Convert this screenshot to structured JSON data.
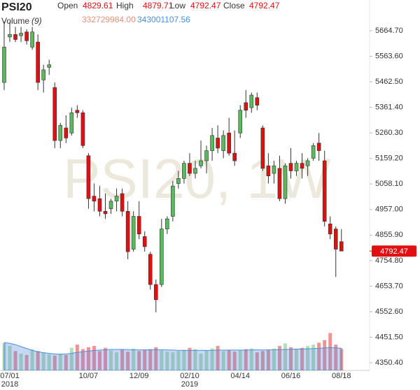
{
  "chart_data": {
    "type": "candlestick",
    "title": "PSI20",
    "watermark": "PSI20, 1W",
    "header": [
      {
        "label": "Open",
        "value": 4829.61
      },
      {
        "label": "High",
        "value": 4879.71
      },
      {
        "label": "Low",
        "value": 4792.47
      },
      {
        "label": "Close",
        "value": 4792.47
      }
    ],
    "volume_title": "Volume",
    "volume_period": "(9)",
    "volume_readout": {
      "volume": {
        "value": 332729984,
        "label": "332729984.00"
      },
      "ma": 343001107.56
    },
    "last_price": 4792.47,
    "up_color": "#5cb85c",
    "down_color": "#e01010",
    "categories": [
      null,
      "07/01",
      null,
      null,
      null,
      null,
      null,
      null,
      null,
      null,
      null,
      null,
      null,
      null,
      null,
      "10/07",
      null,
      null,
      null,
      null,
      null,
      null,
      null,
      null,
      "12/09",
      null,
      null,
      null,
      null,
      null,
      null,
      null,
      null,
      "02/10",
      null,
      null,
      null,
      null,
      null,
      null,
      null,
      null,
      "04/14",
      null,
      null,
      null,
      null,
      null,
      null,
      null,
      null,
      "06/16",
      null,
      null,
      null,
      null,
      null,
      null,
      null,
      null,
      "08/18"
    ],
    "years": [
      null,
      "2018",
      null,
      null,
      null,
      null,
      null,
      null,
      null,
      null,
      null,
      null,
      null,
      null,
      null,
      null,
      null,
      null,
      null,
      null,
      null,
      null,
      null,
      null,
      null,
      null,
      null,
      null,
      null,
      null,
      null,
      null,
      null,
      "2019",
      null,
      null,
      null,
      null,
      null,
      null,
      null,
      null,
      null,
      null,
      null,
      null,
      null,
      null,
      null,
      null,
      null,
      null,
      null,
      null,
      null,
      null,
      null,
      null,
      null,
      null,
      null
    ],
    "open": [
      5460,
      5640,
      5650,
      5645,
      5660,
      5600,
      5620,
      5470,
      5520,
      5440,
      5230,
      5280,
      5260,
      5350,
      5340,
      5170,
      5010,
      5000,
      4950,
      4960,
      4990,
      5020,
      4950,
      4800,
      4930,
      4850,
      4780,
      4660,
      4660,
      4880,
      4930,
      5060,
      5080,
      5140,
      5100,
      5130,
      5150,
      5190,
      5240,
      5190,
      5260,
      5180,
      5260,
      5380,
      5360,
      5400,
      5280,
      5130,
      5100,
      5120,
      5000,
      5140,
      5110,
      5140,
      5130,
      5160,
      5220,
      5150,
      4900,
      4880,
      4829.61
    ],
    "high": [
      5700,
      5700,
      5680,
      5680,
      5670,
      5680,
      5650,
      5530,
      5550,
      5460,
      5300,
      5330,
      5360,
      5370,
      5350,
      5180,
      5060,
      5050,
      5020,
      5000,
      5040,
      5040,
      4990,
      4950,
      4990,
      4870,
      4790,
      4680,
      4920,
      4930,
      5070,
      5110,
      5150,
      5180,
      5150,
      5230,
      5210,
      5280,
      5290,
      5270,
      5320,
      5270,
      5370,
      5430,
      5420,
      5420,
      5290,
      5180,
      5150,
      5170,
      5140,
      5200,
      5150,
      5180,
      5160,
      5220,
      5260,
      5190,
      4930,
      4890,
      4879.71
    ],
    "low": [
      5430,
      5620,
      5620,
      5620,
      5610,
      5590,
      5430,
      5420,
      5490,
      5200,
      5200,
      5220,
      5250,
      5320,
      5200,
      4960,
      4950,
      4930,
      4920,
      4940,
      4950,
      4930,
      4760,
      4790,
      4840,
      4790,
      4640,
      4550,
      4650,
      4860,
      4910,
      5040,
      5060,
      5090,
      5080,
      5120,
      5100,
      5150,
      5180,
      5160,
      5170,
      5130,
      5240,
      5320,
      5340,
      5350,
      5110,
      5060,
      5060,
      4990,
      4980,
      5080,
      5090,
      5080,
      5090,
      5150,
      5150,
      4890,
      4840,
      4690,
      4792.47
    ],
    "close": [
      5600,
      5650,
      5630,
      5655,
      5625,
      5660,
      5460,
      5510,
      5530,
      5230,
      5290,
      5240,
      5340,
      5340,
      5210,
      5000,
      4990,
      4950,
      4940,
      4990,
      5010,
      4950,
      4790,
      4930,
      4860,
      4810,
      4660,
      4600,
      4880,
      4920,
      5050,
      5080,
      5140,
      5100,
      5120,
      5150,
      5190,
      5250,
      5200,
      5250,
      5180,
      5150,
      5350,
      5350,
      5410,
      5370,
      5120,
      5090,
      5130,
      5000,
      5130,
      5110,
      5140,
      5120,
      5150,
      5210,
      5190,
      4910,
      4860,
      4800,
      4792.47
    ],
    "volume": [
      420000000,
      380000000,
      300000000,
      260000000,
      240000000,
      330000000,
      300000000,
      280000000,
      250000000,
      230000000,
      260000000,
      240000000,
      350000000,
      400000000,
      330000000,
      360000000,
      380000000,
      300000000,
      350000000,
      310000000,
      280000000,
      330000000,
      290000000,
      340000000,
      300000000,
      320000000,
      330000000,
      360000000,
      310000000,
      290000000,
      280000000,
      300000000,
      320000000,
      350000000,
      330000000,
      260000000,
      310000000,
      340000000,
      380000000,
      300000000,
      320000000,
      290000000,
      310000000,
      330000000,
      340000000,
      280000000,
      300000000,
      320000000,
      340000000,
      380000000,
      420000000,
      360000000,
      330000000,
      350000000,
      380000000,
      400000000,
      430000000,
      470000000,
      580000000,
      400000000,
      332729984
    ],
    "volume_ma": [
      430000000,
      420000000,
      400000000,
      370000000,
      340000000,
      310000000,
      290000000,
      275000000,
      265000000,
      255000000,
      250000000,
      255000000,
      265000000,
      280000000,
      290000000,
      300000000,
      310000000,
      315000000,
      320000000,
      325000000,
      325000000,
      325000000,
      322000000,
      320000000,
      318000000,
      318000000,
      320000000,
      322000000,
      320000000,
      318000000,
      315000000,
      312000000,
      310000000,
      310000000,
      312000000,
      312000000,
      310000000,
      312000000,
      315000000,
      315000000,
      316000000,
      316000000,
      315000000,
      316000000,
      318000000,
      318000000,
      317000000,
      318000000,
      320000000,
      322000000,
      325000000,
      328000000,
      330000000,
      332000000,
      335000000,
      338000000,
      342000000,
      348000000,
      355000000,
      350000000,
      343001107.56
    ],
    "ylim": [
      4320,
      5786.4
    ],
    "volume_ylim": [
      0,
      650000000
    ],
    "yticks": [
      {
        "value": 5664.7,
        "label": "5664.70"
      },
      {
        "value": 5563.6,
        "label": "5563.60"
      },
      {
        "value": 5462.5,
        "label": "5462.50"
      },
      {
        "value": 5361.4,
        "label": "5361.40"
      },
      {
        "value": 5260.3,
        "label": "5260.30"
      },
      {
        "value": 5159.2,
        "label": "5159.20"
      },
      {
        "value": 5058.1,
        "label": "5058.10"
      },
      {
        "value": 4957,
        "label": "4957.00"
      },
      {
        "value": 4855.9,
        "label": "4855.90"
      },
      {
        "value": 4754.8,
        "label": "4754.80"
      },
      {
        "value": 4653.7,
        "label": "4653.70"
      },
      {
        "value": 4552.6,
        "label": "4552.60"
      },
      {
        "value": 4451.5,
        "label": "4451.50"
      },
      {
        "value": 4350.4,
        "label": "4350.40"
      }
    ]
  }
}
